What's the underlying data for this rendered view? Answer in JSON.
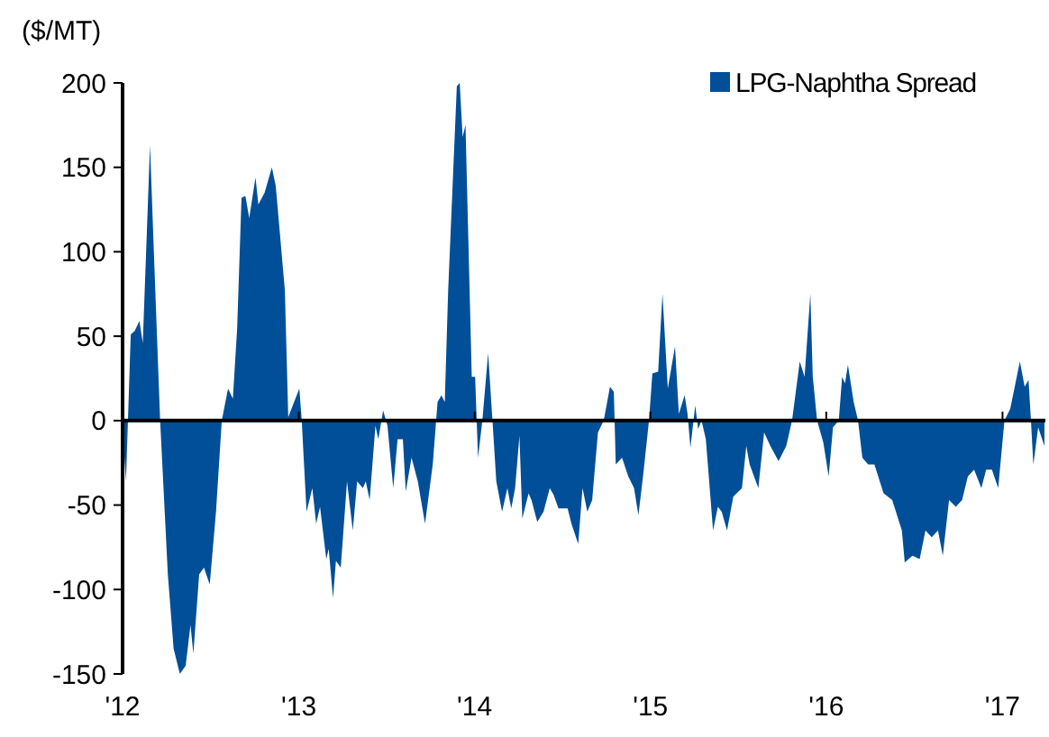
{
  "chart_data": {
    "type": "area",
    "ylabel": "($/MT)",
    "legend": "top right",
    "xlim": [
      "2012-01-01",
      "2017-03-31"
    ],
    "xticks": [
      {
        "value": "2012-01-01",
        "label": "'12"
      },
      {
        "value": "2013-01-01",
        "label": "'13"
      },
      {
        "value": "2014-01-01",
        "label": "'14"
      },
      {
        "value": "2015-01-01",
        "label": "'15"
      },
      {
        "value": "2016-01-01",
        "label": "'16"
      },
      {
        "value": "2017-01-01",
        "label": "'17"
      }
    ],
    "ylim": [
      -150,
      200
    ],
    "yticks": [
      -150,
      -100,
      -50,
      0,
      50,
      100,
      150,
      200
    ],
    "x": [
      "2012-01-01",
      "2012-01-08",
      "2012-01-18",
      "2012-01-26",
      "2012-02-05",
      "2012-02-12",
      "2012-02-27",
      "2012-03-07",
      "2012-03-19",
      "2012-04-04",
      "2012-04-16",
      "2012-04-29",
      "2012-05-11",
      "2012-05-21",
      "2012-05-27",
      "2012-06-08",
      "2012-06-18",
      "2012-06-30",
      "2012-07-13",
      "2012-07-25",
      "2012-08-07",
      "2012-08-17",
      "2012-08-26",
      "2012-09-04",
      "2012-09-12",
      "2012-09-20",
      "2012-10-03",
      "2012-10-09",
      "2012-10-22",
      "2012-11-06",
      "2012-11-14",
      "2012-11-26",
      "2012-12-03",
      "2012-12-10",
      "2013-01-02",
      "2013-01-07",
      "2013-01-17",
      "2013-01-29",
      "2013-02-06",
      "2013-02-14",
      "2013-02-27",
      "2013-03-04",
      "2013-03-13",
      "2013-03-19",
      "2013-03-29",
      "2013-04-11",
      "2013-04-23",
      "2013-05-02",
      "2013-05-14",
      "2013-05-20",
      "2013-05-28",
      "2013-06-09",
      "2013-06-15",
      "2013-06-25",
      "2013-07-04",
      "2013-07-16",
      "2013-07-25",
      "2013-08-05",
      "2013-08-11",
      "2013-08-23",
      "2013-09-05",
      "2013-09-20",
      "2013-10-06",
      "2013-10-16",
      "2013-10-24",
      "2013-10-31",
      "2013-11-07",
      "2013-11-25",
      "2013-12-01",
      "2013-12-07",
      "2013-12-13",
      "2013-12-26",
      "2014-01-02",
      "2014-01-08",
      "2014-01-17",
      "2014-01-29",
      "2014-02-07",
      "2014-02-15",
      "2014-02-27",
      "2014-03-10",
      "2014-03-18",
      "2014-03-26",
      "2014-04-04",
      "2014-04-10",
      "2014-04-23",
      "2014-04-29",
      "2014-05-11",
      "2014-05-24",
      "2014-06-06",
      "2014-06-14",
      "2014-06-24",
      "2014-07-13",
      "2014-07-21",
      "2014-08-04",
      "2014-08-13",
      "2014-08-23",
      "2014-09-02",
      "2014-09-14",
      "2014-09-26",
      "2014-10-09",
      "2014-10-17",
      "2014-10-21",
      "2014-11-03",
      "2014-11-16",
      "2014-11-28",
      "2014-12-07",
      "2014-12-17",
      "2014-12-29",
      "2015-01-05",
      "2015-01-17",
      "2015-01-26",
      "2015-02-06",
      "2015-02-21",
      "2015-03-01",
      "2015-03-13",
      "2015-03-19",
      "2015-03-25",
      "2015-04-04",
      "2015-04-10",
      "2015-04-17",
      "2015-04-26",
      "2015-05-11",
      "2015-05-21",
      "2015-05-29",
      "2015-06-09",
      "2015-06-22",
      "2015-07-10",
      "2015-07-19",
      "2015-07-26",
      "2015-08-13",
      "2015-08-25",
      "2015-09-07",
      "2015-09-24",
      "2015-10-10",
      "2015-10-22",
      "2015-11-07",
      "2015-11-17",
      "2015-11-29",
      "2015-12-04",
      "2015-12-13",
      "2015-12-26",
      "2016-01-06",
      "2016-01-15",
      "2016-01-27",
      "2016-02-03",
      "2016-02-09",
      "2016-02-15",
      "2016-02-27",
      "2016-03-07",
      "2016-03-16",
      "2016-03-28",
      "2016-04-10",
      "2016-04-29",
      "2016-05-17",
      "2016-06-06",
      "2016-06-12",
      "2016-06-28",
      "2016-07-13",
      "2016-07-25",
      "2016-08-07",
      "2016-08-20",
      "2016-08-30",
      "2016-09-12",
      "2016-09-26",
      "2016-10-09",
      "2016-10-21",
      "2016-11-03",
      "2016-11-18",
      "2016-11-28",
      "2016-12-10",
      "2016-12-23",
      "2017-01-05",
      "2017-01-17",
      "2017-02-06",
      "2017-02-16",
      "2017-02-24",
      "2017-03-01",
      "2017-03-06",
      "2017-03-16",
      "2017-03-29"
    ],
    "series": [
      {
        "name": "LPG-Naphtha Spread",
        "color": "#004f98",
        "values": [
          -5,
          -36,
          51,
          53,
          59,
          46,
          163,
          92,
          0,
          -91,
          -135,
          -150,
          -145,
          -121,
          -138,
          -91,
          -87,
          -97,
          -54,
          0,
          19,
          13,
          55,
          132,
          133,
          120,
          144,
          128,
          135,
          150,
          139,
          100,
          77,
          2,
          19,
          0,
          -54,
          -40,
          -61,
          -51,
          -82,
          -76,
          -105,
          -83,
          -87,
          -36,
          -65,
          -36,
          -40,
          -36,
          -47,
          -3,
          -11,
          6,
          -3,
          -40,
          -11,
          -11,
          -42,
          -22,
          -36,
          -61,
          -26,
          11,
          15,
          11,
          77,
          198,
          200,
          168,
          175,
          26,
          26,
          -22,
          0,
          40,
          0,
          -36,
          -54,
          -40,
          -52,
          -40,
          -9,
          -58,
          -43,
          -47,
          -60,
          -54,
          -40,
          -44,
          -52,
          -52,
          -61,
          -73,
          -40,
          -54,
          -47,
          -7,
          0,
          20,
          17,
          -26,
          -22,
          -33,
          -40,
          -56,
          -32,
          0,
          28,
          29,
          75,
          19,
          44,
          4,
          15,
          4,
          -16,
          9,
          -5,
          0,
          -11,
          -65,
          -51,
          -54,
          -65,
          -45,
          -40,
          -15,
          -26,
          -40,
          -7,
          -15,
          -24,
          -15,
          0,
          35,
          26,
          75,
          26,
          0,
          -13,
          -33,
          -4,
          0,
          26,
          22,
          33,
          11,
          0,
          -22,
          -26,
          -26,
          -43,
          -47,
          -65,
          -84,
          -80,
          -82,
          -65,
          -69,
          -65,
          -80,
          -47,
          -51,
          -47,
          -33,
          -29,
          -40,
          -29,
          -29,
          -40,
          0,
          7,
          35,
          20,
          24,
          0,
          -26,
          -4,
          -15
        ]
      }
    ]
  }
}
